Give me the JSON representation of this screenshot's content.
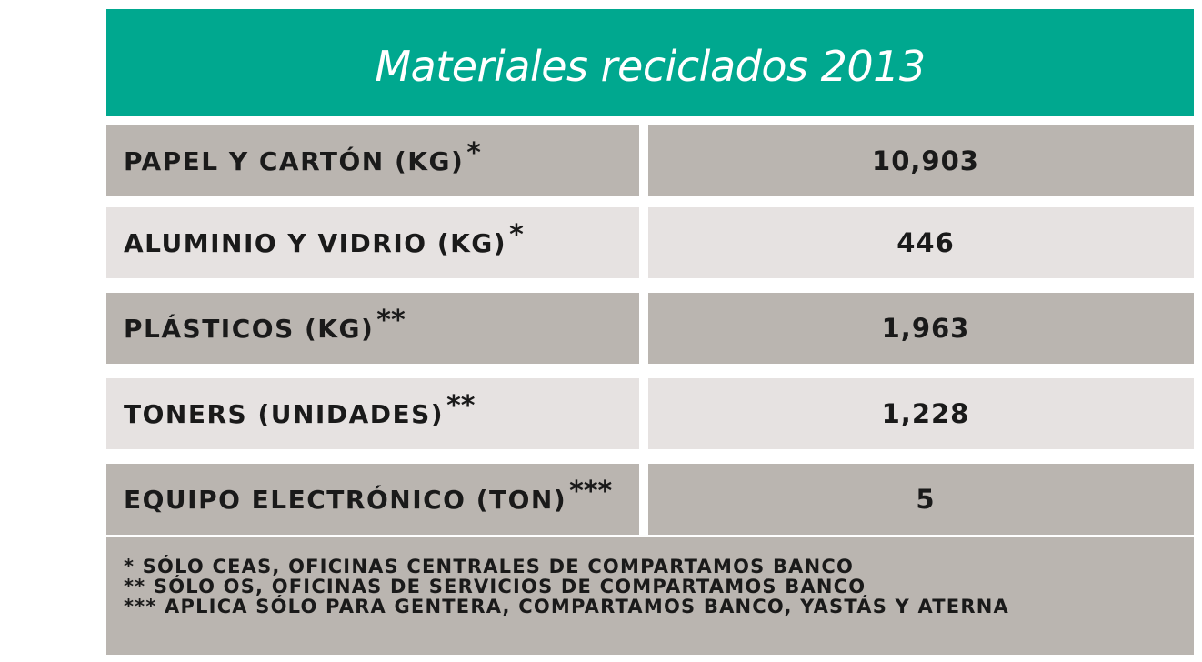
{
  "title": "Materiales reciclados 2013",
  "rows": [
    {
      "label": "Papel y cartón (kg)",
      "marker": "*",
      "value": "10,903"
    },
    {
      "label": "Aluminio y vidrio (kg)",
      "marker": "*",
      "value": "446"
    },
    {
      "label": "Plásticos (kg)",
      "marker": "**",
      "value": "1,963"
    },
    {
      "label": "Toners (unidades)",
      "marker": "**",
      "value": "1,228"
    },
    {
      "label": "Equipo electrónico (ton)",
      "marker": "***",
      "value": "5"
    }
  ],
  "notes": [
    "* sólo CEAs, Oficinas Centrales de Compartamos Banco",
    "** sólo OS, Oficinas de Servicios de Compartamos Banco",
    "*** Aplica sólo para Gentera, Compartamos Banco, Yastás y Aterna"
  ],
  "colors": {
    "header": "#00a88f",
    "row_dark": "#bab5b0",
    "row_light": "#e6e2e1",
    "text": "#1a1a1a"
  }
}
